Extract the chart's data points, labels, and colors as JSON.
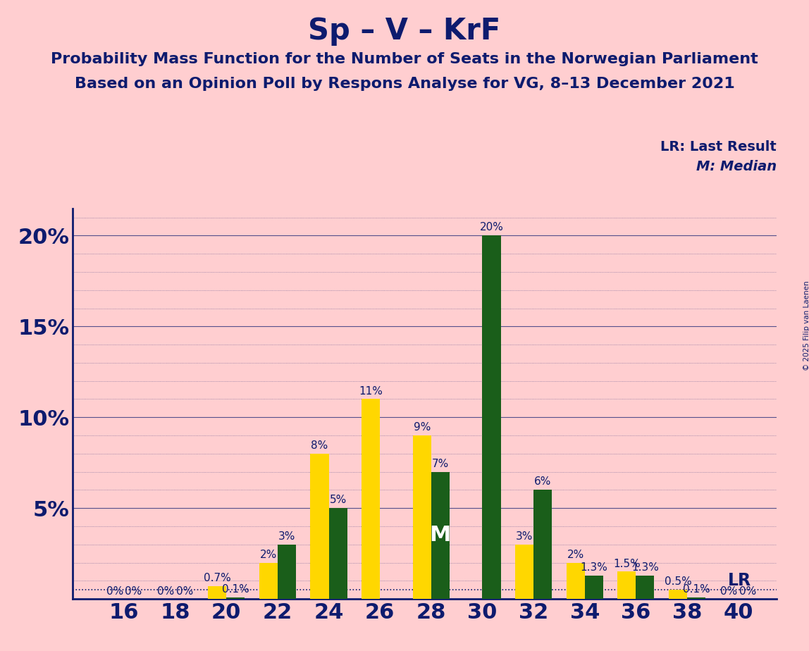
{
  "title": "Sp – V – KrF",
  "subtitle1": "Probability Mass Function for the Number of Seats in the Norwegian Parliament",
  "subtitle2": "Based on an Opinion Poll by Respons Analyse for VG, 8–13 December 2021",
  "copyright": "© 2025 Filip van Laenen",
  "legend_lr": "LR: Last Result",
  "legend_m": "M: Median",
  "seats": [
    16,
    18,
    20,
    22,
    24,
    26,
    28,
    30,
    32,
    34,
    36,
    38,
    40
  ],
  "yellow_values": [
    0.0,
    0.0,
    0.7,
    2.0,
    8.0,
    11.0,
    9.0,
    0.0,
    3.0,
    2.0,
    1.5,
    0.5,
    0.0
  ],
  "green_values": [
    0.0,
    0.0,
    0.1,
    3.0,
    5.0,
    0.0,
    7.0,
    20.0,
    6.0,
    1.3,
    1.3,
    0.1,
    0.0
  ],
  "yellow_labels": [
    "0%",
    "0%",
    "0.7%",
    "2%",
    "8%",
    "11%",
    "9%",
    "",
    "3%",
    "2%",
    "1.5%",
    "0.5%",
    "0%"
  ],
  "green_labels": [
    "0%",
    "0%",
    "0.1%",
    "3%",
    "5%",
    "",
    "7%",
    "20%",
    "6%",
    "1.3%",
    "1.3%",
    "0.1%",
    "0%"
  ],
  "median_seat": 28,
  "lr_value": 0.5,
  "background_color": "#FFCED0",
  "yellow_color": "#FFD700",
  "green_color": "#1A5E1A",
  "text_color": "#0D1B6E",
  "title_fontsize": 30,
  "subtitle_fontsize": 16,
  "tick_fontsize": 22,
  "bar_label_fontsize": 11,
  "ylim_max": 21.5,
  "yticks": [
    0,
    5,
    10,
    15,
    20
  ],
  "ytick_labels": [
    "",
    "5%",
    "10%",
    "15%",
    "20%"
  ]
}
